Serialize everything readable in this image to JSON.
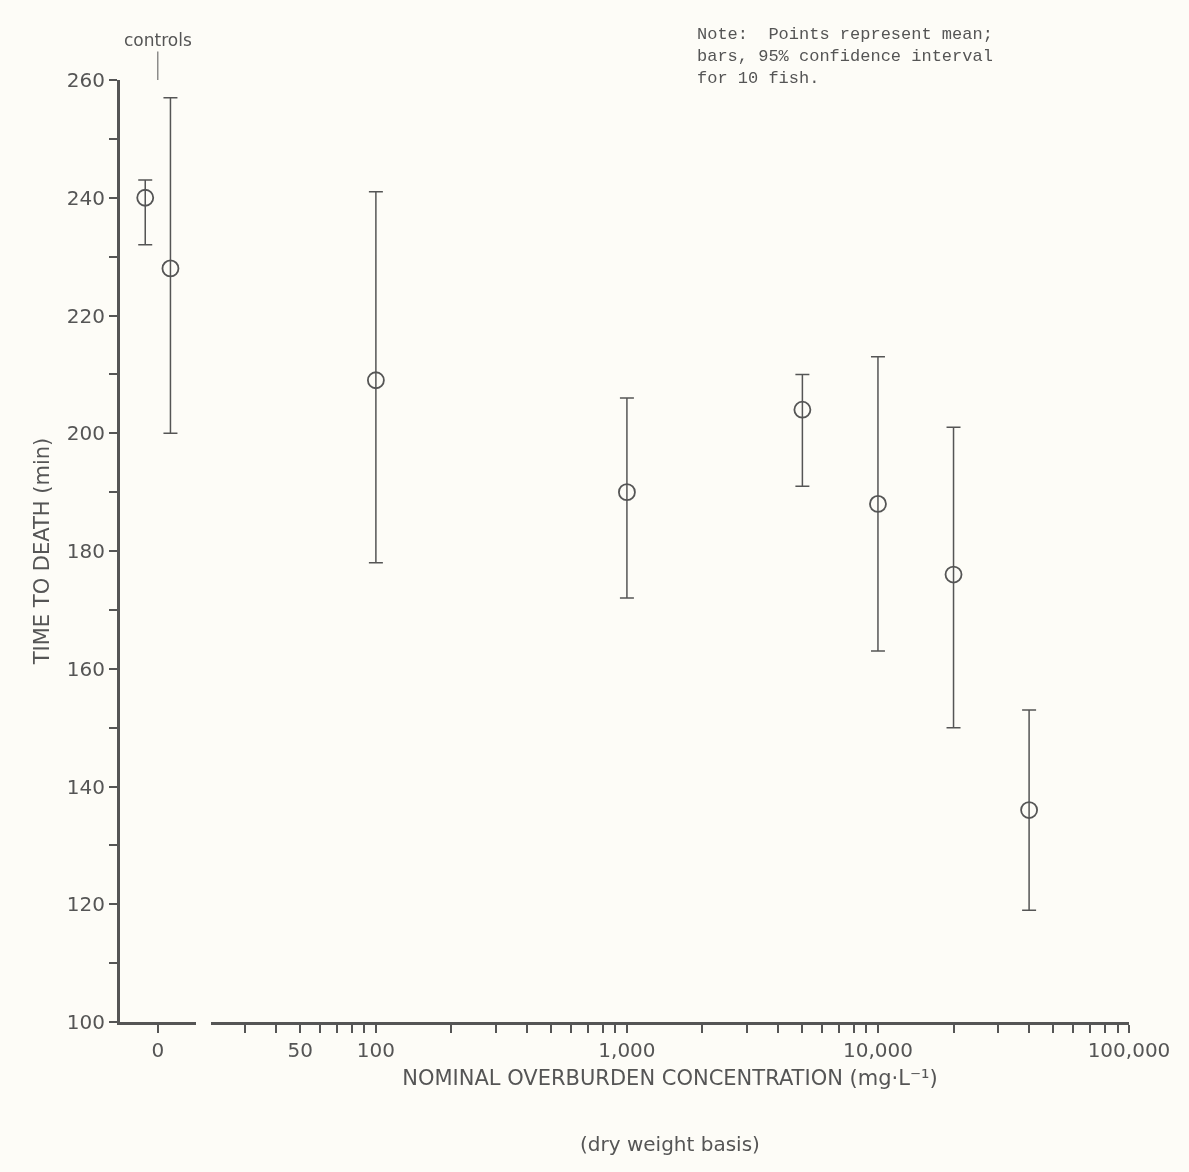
{
  "chart_data": [
    {
      "type": "scatter",
      "ylabel": "TIME TO DEATH (min)",
      "annotations": [
        "controls"
      ],
      "categories": [
        "0"
      ],
      "series": [
        {
          "color": "#555555",
          "values": [
            240
          ],
          "errors": [
            [
              232,
              243
            ]
          ]
        },
        {
          "color": "#555555",
          "values": [
            228
          ],
          "errors": [
            [
              200,
              257
            ]
          ]
        }
      ],
      "marker": "circle",
      "ylim": [
        100,
        260
      ],
      "yticks": [
        100,
        {
          "value": 110,
          "label": null
        },
        120,
        {
          "value": 130,
          "label": null
        },
        140,
        {
          "value": 150,
          "label": null
        },
        160,
        {
          "value": 170,
          "label": null
        },
        180,
        {
          "value": 190,
          "label": null
        },
        200,
        {
          "value": 210,
          "label": null
        },
        220,
        {
          "value": 230,
          "label": null
        },
        240,
        {
          "value": 250,
          "label": null
        },
        260
      ],
      "grid": false
    },
    {
      "type": "scatter",
      "xlabel": "NOMINAL OVERBURDEN CONCENTRATION (mg·L⁻¹)",
      "annotations": [
        "(dry weight basis)",
        "Note:  Points represent mean;\nbars, 95% confidence interval\nfor 10 fish."
      ],
      "log": "x",
      "x": [
        100,
        1000,
        5000,
        10000,
        20000,
        40000
      ],
      "series": [
        {
          "color": "#555555",
          "values": [
            209,
            190,
            204,
            188,
            176,
            136
          ],
          "errors": [
            [
              178,
              241
            ],
            [
              172,
              206
            ],
            [
              191,
              210
            ],
            [
              163,
              213
            ],
            [
              150,
              201
            ],
            [
              119,
              153
            ]
          ]
        }
      ],
      "marker": "circle",
      "xlim": [
        22,
        100000
      ],
      "xticks": [
        {
          "value": 30,
          "label": null
        },
        {
          "value": 40,
          "label": null
        },
        50,
        {
          "value": 60,
          "label": null
        },
        {
          "value": 70,
          "label": null
        },
        {
          "value": 80,
          "label": null
        },
        {
          "value": 90,
          "label": null
        },
        {
          "value": 100,
          "label": "100"
        },
        {
          "value": 200,
          "label": null
        },
        {
          "value": 300,
          "label": null
        },
        {
          "value": 400,
          "label": null
        },
        {
          "value": 500,
          "label": null
        },
        {
          "value": 600,
          "label": null
        },
        {
          "value": 700,
          "label": null
        },
        {
          "value": 800,
          "label": null
        },
        {
          "value": 900,
          "label": null
        },
        {
          "value": 1000,
          "label": "1,000"
        },
        {
          "value": 2000,
          "label": null
        },
        {
          "value": 3000,
          "label": null
        },
        {
          "value": 4000,
          "label": null
        },
        {
          "value": 5000,
          "label": null
        },
        {
          "value": 6000,
          "label": null
        },
        {
          "value": 7000,
          "label": null
        },
        {
          "value": 8000,
          "label": null
        },
        {
          "value": 9000,
          "label": null
        },
        {
          "value": 10000,
          "label": "10,000"
        },
        {
          "value": 20000,
          "label": null
        },
        {
          "value": 30000,
          "label": null
        },
        {
          "value": 40000,
          "label": null
        },
        {
          "value": 50000,
          "label": null
        },
        {
          "value": 60000,
          "label": null
        },
        {
          "value": 70000,
          "label": null
        },
        {
          "value": 80000,
          "label": null
        },
        {
          "value": 90000,
          "label": null
        },
        {
          "value": 100000,
          "label": "100,000"
        }
      ],
      "ylim": [
        100,
        260
      ],
      "tick_labels": "x",
      "grid": false
    }
  ]
}
